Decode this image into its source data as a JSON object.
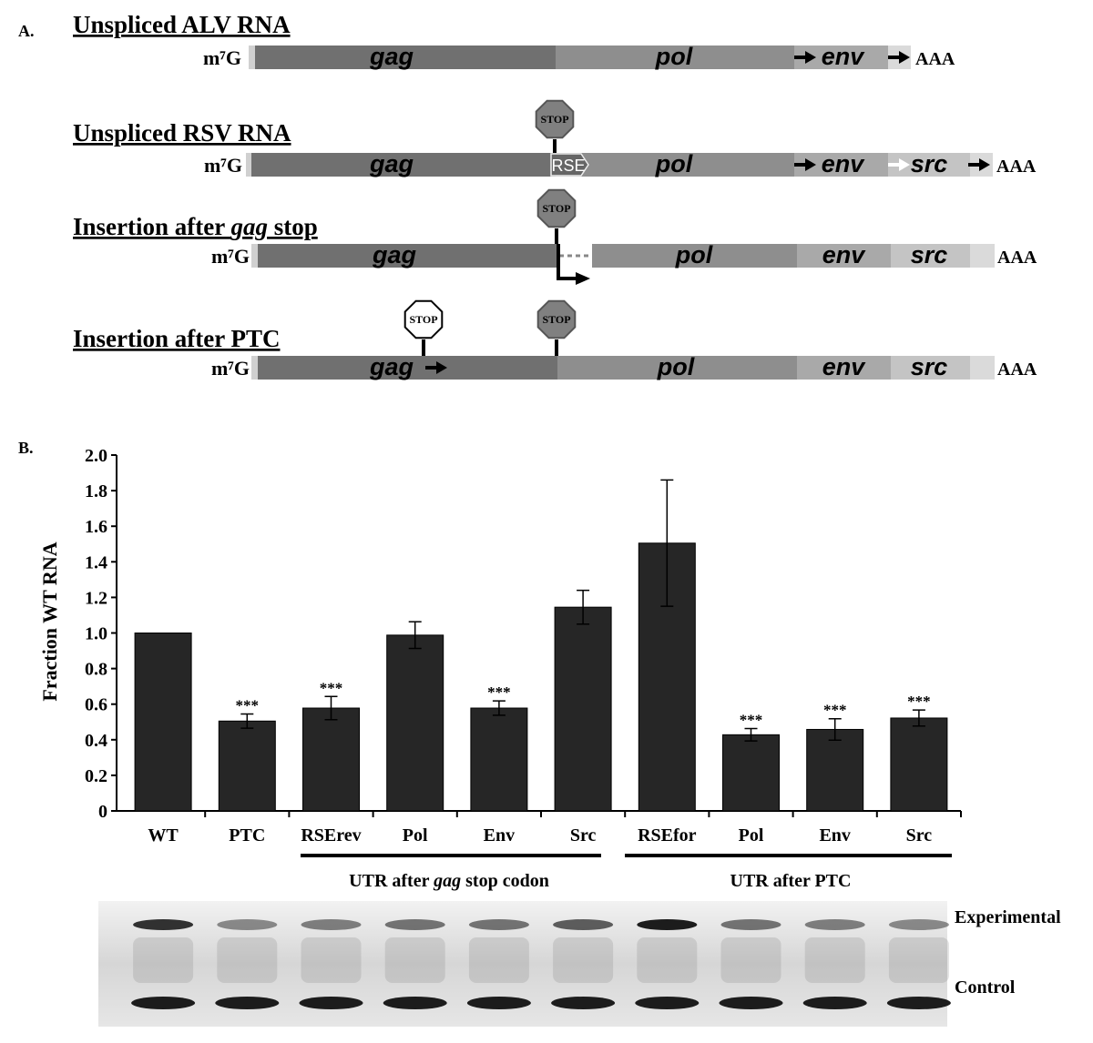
{
  "panel_a": {
    "label": "A.",
    "cap": "m⁷G",
    "tail": "AAA",
    "stop": "STOP",
    "constructs": [
      {
        "title": [
          "Unspliced ALV RNA"
        ],
        "segments": [
          "gag",
          "pol",
          "env"
        ]
      },
      {
        "title": [
          "Unspliced RSV RNA"
        ],
        "segments": [
          "gag",
          "pol",
          "env",
          "src"
        ],
        "element": "RSE"
      },
      {
        "title": [
          "Insertion after ",
          "gag",
          " stop"
        ],
        "segments": [
          "gag",
          "pol",
          "env",
          "src"
        ]
      },
      {
        "title": [
          "Insertion after PTC"
        ],
        "segments": [
          "gag",
          "pol",
          "env",
          "src"
        ]
      }
    ]
  },
  "panel_b_label": "B.",
  "chart_data": {
    "type": "bar",
    "ylabel": "Fraction WT RNA",
    "color": "#262626",
    "categories": [
      "WT",
      "PTC",
      "RSErev",
      "Pol",
      "Env",
      "Src",
      "RSEfor",
      "Pol",
      "Env",
      "Src"
    ],
    "values": [
      1.0,
      0.505,
      0.578,
      0.988,
      0.578,
      1.145,
      1.505,
      0.428,
      0.458,
      0.522
    ],
    "errors": [
      null,
      0.04,
      0.065,
      0.075,
      0.04,
      0.095,
      0.355,
      0.035,
      0.06,
      0.045
    ],
    "significance": [
      null,
      "***",
      "***",
      null,
      "***",
      null,
      null,
      "***",
      "***",
      "***"
    ],
    "groups": [
      [
        "UTR after ",
        "gag",
        " stop codon"
      ],
      [
        "UTR after PTC"
      ]
    ],
    "ylim": [
      0,
      2
    ],
    "yticks": [
      0,
      0.2,
      0.4,
      0.6,
      0.8,
      {
        "value": 1,
        "label": "1.0"
      },
      1.2,
      1.4,
      1.6,
      1.8,
      {
        "value": 2,
        "label": "2.0"
      }
    ]
  },
  "gel": {
    "labels": [
      "Experimental",
      "Control"
    ]
  }
}
